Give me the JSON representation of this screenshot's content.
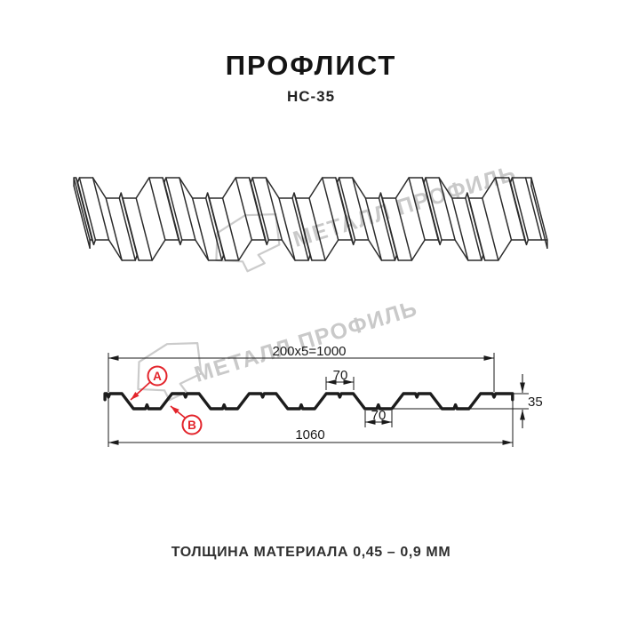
{
  "header": {
    "title": "ПРОФЛИСТ",
    "subtitle": "НС-35"
  },
  "watermark": {
    "brand": "МЕТАЛЛ ПРОФИЛЬ"
  },
  "cross_section": {
    "dim_pitch": "200x5=1000",
    "dim_crest_width": "70",
    "dim_trough_width": "70",
    "dim_total_width": "1060",
    "dim_height": "35",
    "label_a": "A",
    "label_b": "B"
  },
  "footer": {
    "note": "ТОЛЩИНА МАТЕРИАЛА 0,45 – 0,9 ММ"
  },
  "colors": {
    "accent_red": "#e3242b",
    "drawing_line": "#1c1c1c",
    "watermark_gray": "#c9c9c9"
  }
}
